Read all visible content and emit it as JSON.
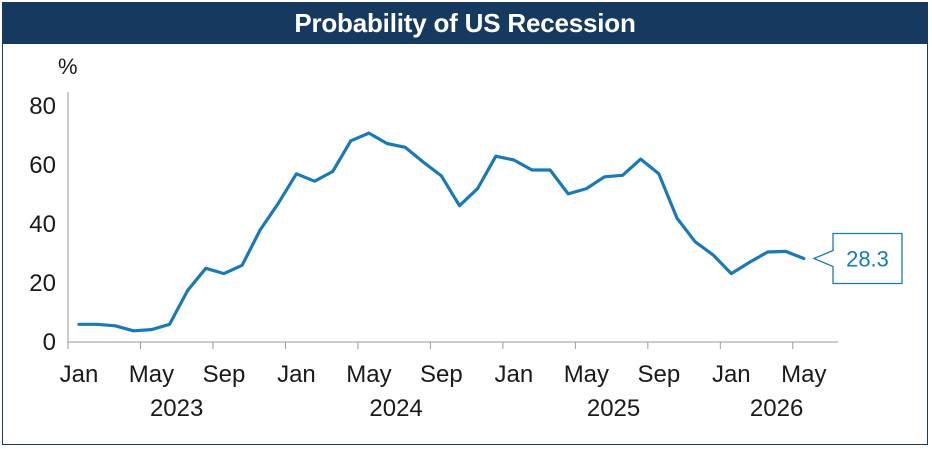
{
  "chart_data": {
    "type": "line",
    "title": "Probability of US Recession",
    "ylabel": "%",
    "ylim": [
      0,
      80
    ],
    "yticks": [
      0,
      20,
      40,
      60,
      80
    ],
    "month_ticks": [
      "Jan",
      "May",
      "Sep",
      "Jan",
      "May",
      "Sep",
      "Jan",
      "May",
      "Sep",
      "Jan",
      "May"
    ],
    "years": [
      "2023",
      "2024",
      "2025",
      "2026"
    ],
    "x": [
      "2023-01",
      "2023-02",
      "2023-03",
      "2023-04",
      "2023-05",
      "2023-06",
      "2023-07",
      "2023-08",
      "2023-09",
      "2023-10",
      "2023-11",
      "2023-12",
      "2024-01",
      "2024-02",
      "2024-03",
      "2024-04",
      "2024-05",
      "2024-06",
      "2024-07",
      "2024-08",
      "2024-09",
      "2024-10",
      "2024-11",
      "2024-12",
      "2025-01",
      "2025-02",
      "2025-03",
      "2025-04",
      "2025-05",
      "2025-06",
      "2025-07",
      "2025-08",
      "2025-09",
      "2025-10",
      "2025-11",
      "2025-12",
      "2026-01",
      "2026-02",
      "2026-03",
      "2026-04",
      "2026-05"
    ],
    "series": [
      {
        "values": [
          6,
          6,
          5.5,
          3.8,
          4.2,
          6,
          17.5,
          25,
          23.2,
          26,
          38,
          47,
          57,
          54.5,
          57.8,
          68.2,
          70.8,
          67.3,
          66,
          61,
          56.3,
          46.2,
          52,
          63,
          61.7,
          58.3,
          58.3,
          50.2,
          52,
          56,
          56.5,
          62,
          57,
          42,
          34,
          29.5,
          23.2,
          27,
          30.5,
          30.7,
          28.3
        ]
      }
    ],
    "callout": "28.3",
    "color": "#1a7ab7"
  }
}
